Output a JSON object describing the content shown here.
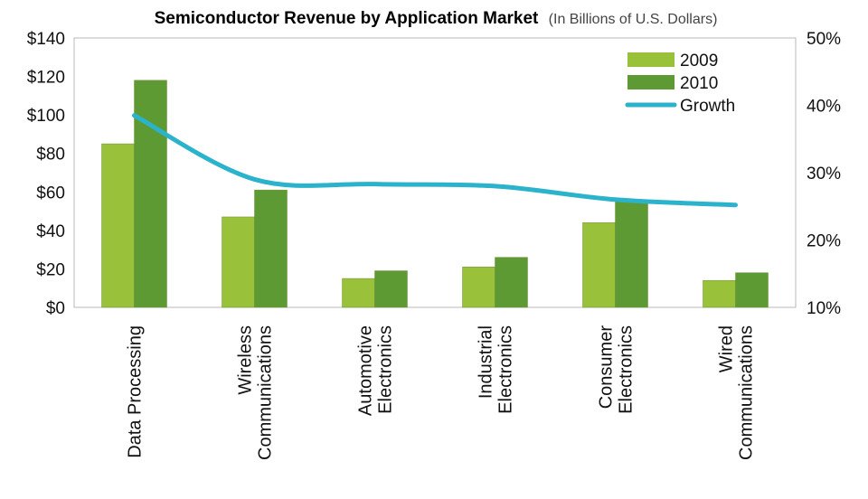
{
  "chart_data": {
    "type": "bar",
    "title": "Semiconductor Revenue by Application Market",
    "subtitle": "(In Billions of U.S. Dollars)",
    "categories": [
      [
        "Data Processing"
      ],
      [
        "Wireless",
        "Communications"
      ],
      [
        "Automotive",
        "Electronics"
      ],
      [
        "Industrial",
        "Electronics"
      ],
      [
        "Consumer",
        "Electronics"
      ],
      [
        "Wired",
        "Communications"
      ]
    ],
    "series": [
      {
        "name": "2009",
        "values": [
          85,
          47,
          15,
          21,
          44,
          14
        ],
        "color": "#99c13a"
      },
      {
        "name": "2010",
        "values": [
          118,
          61,
          19,
          26,
          56,
          18
        ],
        "color": "#5e9a33"
      }
    ],
    "line_series": {
      "name": "Growth",
      "axis": "right",
      "values": [
        38.5,
        29.0,
        28.3,
        28.0,
        26.0,
        25.2
      ],
      "color": "#2bb3cc"
    },
    "ylim": [
      0,
      140
    ],
    "yticks": [
      "$0",
      "$20",
      "$40",
      "$60",
      "$80",
      "$100",
      "$120",
      "$140"
    ],
    "y2lim": [
      10,
      50
    ],
    "y2ticks": [
      "10%",
      "20%",
      "30%",
      "40%",
      "50%"
    ],
    "legend_position": "top-right",
    "grid": false
  }
}
